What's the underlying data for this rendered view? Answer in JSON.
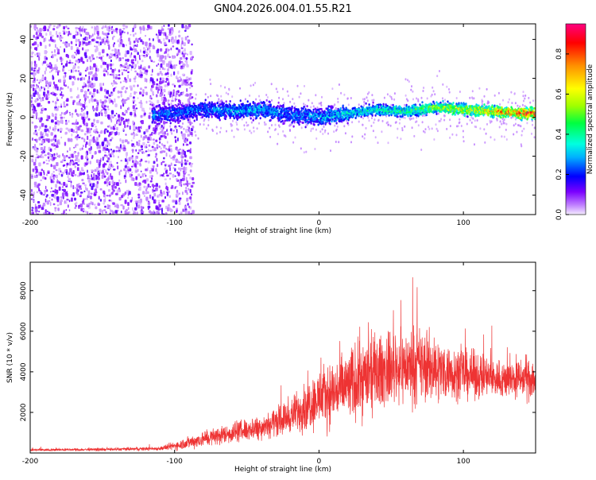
{
  "title": "GN04.2026.004.01.55.R21",
  "chart_data": [
    {
      "type": "heatmap",
      "xlabel": "Height of straight line (km)",
      "ylabel": "Frequency (Hz)",
      "xlim": [
        -200,
        150
      ],
      "ylim": [
        -50,
        48
      ],
      "xticks": [
        -200,
        -100,
        0,
        100
      ],
      "yticks": [
        -40,
        -20,
        0,
        20,
        40
      ],
      "colorbar": {
        "label": "Normalized spectral amplitude",
        "range": [
          0,
          0.95
        ],
        "ticks": [
          0.0,
          0.2,
          0.4,
          0.6,
          0.8
        ]
      },
      "ridge": {
        "x": [
          -115,
          -100,
          -80,
          -60,
          -40,
          -20,
          0,
          20,
          40,
          60,
          80,
          100,
          120,
          145
        ],
        "frequency": [
          1,
          2,
          4,
          3,
          4,
          1,
          0,
          2,
          4,
          3,
          5,
          4,
          3,
          2
        ],
        "peak_amplitude": [
          0.3,
          0.3,
          0.3,
          0.35,
          0.35,
          0.3,
          0.35,
          0.4,
          0.45,
          0.5,
          0.6,
          0.7,
          0.8,
          0.95
        ]
      }
    },
    {
      "type": "line",
      "xlabel": "Height of straight line (km)",
      "ylabel": "SNR (10 * v/v)",
      "xlim": [
        -200,
        150
      ],
      "ylim": [
        0,
        9400
      ],
      "xticks": [
        -200,
        -100,
        0,
        100
      ],
      "yticks": [
        2000,
        4000,
        6000,
        8000
      ],
      "series": [
        {
          "name": "SNR",
          "color": "#ee3333",
          "envelope_x": [
            -200,
            -150,
            -110,
            -100,
            -80,
            -60,
            -40,
            -20,
            -10,
            0,
            20,
            30,
            50,
            70,
            90,
            110,
            130,
            150
          ],
          "envelope_mean": [
            150,
            170,
            220,
            350,
            700,
            1000,
            1300,
            1800,
            2300,
            2700,
            3300,
            3700,
            4200,
            4300,
            4000,
            3800,
            3600,
            3700
          ],
          "envelope_amplitude": [
            100,
            110,
            150,
            350,
            650,
            800,
            1000,
            1300,
            2000,
            2300,
            3000,
            3200,
            2800,
            3000,
            2200,
            1800,
            1500,
            1800
          ]
        }
      ]
    }
  ]
}
